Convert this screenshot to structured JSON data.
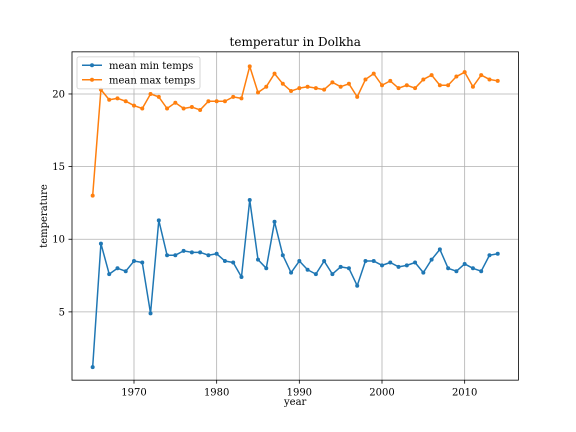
{
  "chart_data": {
    "type": "line",
    "title": "temperatur in Dolkha",
    "xlabel": "year",
    "ylabel": "temperature",
    "xlim": [
      1962.5,
      2016.5
    ],
    "ylim": [
      0.3,
      22.9
    ],
    "xticks": [
      1970,
      1980,
      1990,
      2000,
      2010
    ],
    "yticks": [
      5,
      10,
      15,
      20
    ],
    "grid": true,
    "legend_position": "upper-left",
    "x": [
      1965,
      1966,
      1967,
      1968,
      1969,
      1970,
      1971,
      1972,
      1973,
      1974,
      1975,
      1976,
      1977,
      1978,
      1979,
      1980,
      1981,
      1982,
      1983,
      1984,
      1985,
      1986,
      1987,
      1988,
      1989,
      1990,
      1991,
      1992,
      1993,
      1994,
      1995,
      1996,
      1997,
      1998,
      1999,
      2000,
      2001,
      2002,
      2003,
      2004,
      2005,
      2006,
      2007,
      2008,
      2009,
      2010,
      2011,
      2012,
      2013,
      2014
    ],
    "series": [
      {
        "name": "mean min temps",
        "color": "#1f77b4",
        "values": [
          1.2,
          9.7,
          7.6,
          8.0,
          7.8,
          8.5,
          8.4,
          4.9,
          11.3,
          8.9,
          8.9,
          9.2,
          9.1,
          9.1,
          8.9,
          9.0,
          8.5,
          8.4,
          7.4,
          12.7,
          8.6,
          8.0,
          11.2,
          8.9,
          7.7,
          8.5,
          7.9,
          7.6,
          8.5,
          7.6,
          8.1,
          8.0,
          6.8,
          8.5,
          8.5,
          8.2,
          8.4,
          8.1,
          8.2,
          8.4,
          7.7,
          8.6,
          9.3,
          8.0,
          7.8,
          8.3,
          8.0,
          7.8,
          8.9,
          9.0
        ]
      },
      {
        "name": "mean max temps",
        "color": "#ff7f0e",
        "values": [
          13.0,
          20.3,
          19.6,
          19.7,
          19.5,
          19.2,
          19.0,
          20.0,
          19.8,
          19.0,
          19.4,
          19.0,
          19.1,
          18.9,
          19.5,
          19.5,
          19.5,
          19.8,
          19.7,
          21.9,
          20.1,
          20.5,
          21.4,
          20.7,
          20.2,
          20.4,
          20.5,
          20.4,
          20.3,
          20.8,
          20.5,
          20.7,
          19.8,
          21.0,
          21.4,
          20.6,
          20.9,
          20.4,
          20.6,
          20.4,
          21.0,
          21.3,
          20.6,
          20.6,
          21.2,
          21.5,
          20.5,
          21.3,
          21.0,
          20.9
        ]
      }
    ]
  }
}
